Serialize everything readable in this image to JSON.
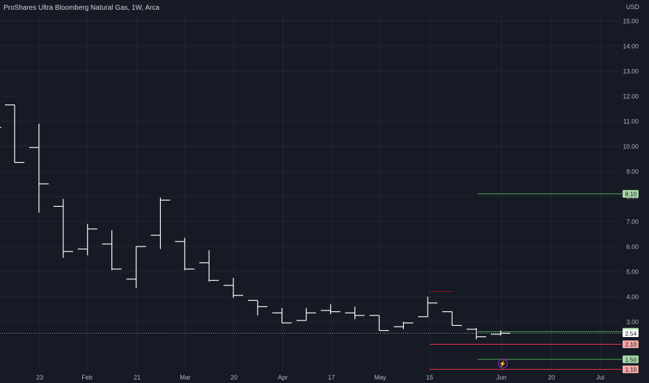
{
  "header": {
    "title": "ProShares Ultra Bloomberg Natural Gas, 1W, Arca"
  },
  "chart_data": {
    "type": "ohlc",
    "title": "ProShares Ultra Bloomberg Natural Gas, 1W, Arca",
    "currency_label": "USD",
    "ylim": [
      0.55,
      15.9
    ],
    "y_ticks": [
      "15.00",
      "14.00",
      "13.00",
      "12.00",
      "11.00",
      "10.00",
      "9.00",
      "8.00",
      "7.00",
      "6.00",
      "5.00",
      "4.00",
      "3.00"
    ],
    "x_ticks": [
      "23",
      "Feb",
      "21",
      "Mar",
      "20",
      "Apr",
      "17",
      "May",
      "15",
      "Jun",
      "20",
      "Jul"
    ],
    "grid": true,
    "series": [
      {
        "bars": [
          {
            "o": 11.65,
            "h": 11.65,
            "l": 9.35,
            "c": 9.35
          },
          {
            "o": 9.95,
            "h": 10.9,
            "l": 7.35,
            "c": 8.5
          },
          {
            "o": 7.6,
            "h": 7.9,
            "l": 5.55,
            "c": 5.8
          },
          {
            "o": 5.9,
            "h": 6.9,
            "l": 5.65,
            "c": 6.7
          },
          {
            "o": 6.1,
            "h": 6.65,
            "l": 5.05,
            "c": 5.1
          },
          {
            "o": 4.7,
            "h": 6.0,
            "l": 4.35,
            "c": 6.0
          },
          {
            "o": 6.45,
            "h": 7.95,
            "l": 5.9,
            "c": 7.85
          },
          {
            "o": 6.2,
            "h": 6.35,
            "l": 5.05,
            "c": 5.1
          },
          {
            "o": 5.35,
            "h": 5.85,
            "l": 4.6,
            "c": 4.65
          },
          {
            "o": 4.45,
            "h": 4.75,
            "l": 3.95,
            "c": 4.05
          },
          {
            "o": 3.85,
            "h": 3.85,
            "l": 3.25,
            "c": 3.6
          },
          {
            "o": 3.35,
            "h": 3.55,
            "l": 2.95,
            "c": 2.95
          },
          {
            "o": 3.05,
            "h": 3.55,
            "l": 3.05,
            "c": 3.35
          },
          {
            "o": 3.45,
            "h": 3.7,
            "l": 3.3,
            "c": 3.4
          },
          {
            "o": 3.35,
            "h": 3.6,
            "l": 3.1,
            "c": 3.25
          },
          {
            "o": 3.25,
            "h": 3.25,
            "l": 2.65,
            "c": 2.65
          },
          {
            "o": 2.8,
            "h": 3.0,
            "l": 2.7,
            "c": 2.95
          },
          {
            "o": 3.2,
            "h": 4.0,
            "l": 3.2,
            "c": 3.75
          },
          {
            "o": 3.4,
            "h": 3.4,
            "l": 2.85,
            "c": 2.85
          },
          {
            "o": 2.7,
            "h": 2.75,
            "l": 2.3,
            "c": 2.4
          },
          {
            "o": 2.5,
            "h": 2.65,
            "l": 2.45,
            "c": 2.54
          }
        ]
      }
    ],
    "last_price": {
      "value": 2.54,
      "label": "2.54"
    },
    "level_lines": [
      {
        "value": 8.1,
        "label": "8.10",
        "color": "#4caf50"
      },
      {
        "value": 2.6,
        "label": "2.60",
        "color": "#4caf50"
      },
      {
        "value": 2.1,
        "label": "2.10",
        "color": "#f23645"
      },
      {
        "value": 1.5,
        "label": "1.50",
        "color": "#4caf50"
      },
      {
        "value": 1.1,
        "label": "1.10",
        "color": "#f23645"
      }
    ],
    "colors": {
      "background": "#161a25",
      "grid": "#232734",
      "bar": "#ffffff",
      "text": "#b2b5be",
      "up": "#4caf50",
      "down": "#f23645",
      "pink_label_bg": "#f7a9a8",
      "green_label_bg": "#a8d8a9",
      "last_price_bg": "#ffffff",
      "event": "#9c27b0"
    },
    "event_marker": {
      "icon": "lightning-icon"
    }
  }
}
